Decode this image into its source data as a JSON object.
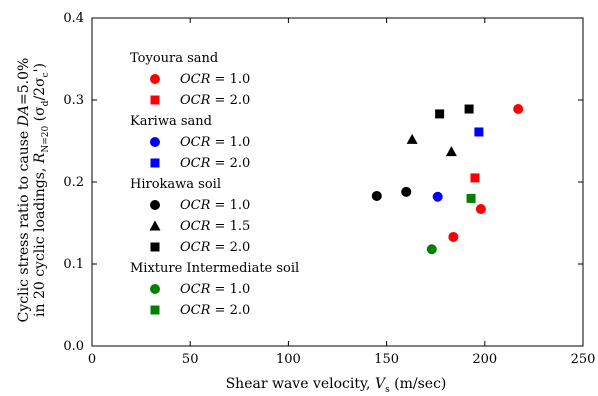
{
  "chart_data": {
    "type": "scatter",
    "xlabel_main": "Shear wave velocity, ",
    "xlabel_var": "V",
    "xlabel_sub": "s",
    "xlabel_unit": " (m/sec)",
    "ylabel_line1_main": "Cyclic stress ratio to cause ",
    "ylabel_line1_var": "DA",
    "ylabel_line1_tail": "=5.0%",
    "ylabel_line2_main": "in 20 cyclic loadings, ",
    "ylabel_line2_var": "R",
    "ylabel_line2_sub": "N=20",
    "ylabel_line2_ratio": " (σ",
    "ylabel_line2_ratio_sub1": "d",
    "ylabel_line2_ratio_mid": "/2σ",
    "ylabel_line2_ratio_sub2": "c",
    "ylabel_line2_ratio_end": "')",
    "xlim": [
      0,
      250
    ],
    "ylim": [
      0,
      0.4
    ],
    "xticks": [
      "0",
      "50",
      "100",
      "150",
      "200",
      "250"
    ],
    "yticks": [
      "0.0",
      "0.1",
      "0.2",
      "0.3",
      "0.4"
    ],
    "legend_position": "left",
    "groups": [
      {
        "title": "Toyoura sand",
        "series": [
          {
            "name": "1.0",
            "color": "#ff0000",
            "marker": "circle",
            "points": [
              [
                184,
                0.133
              ],
              [
                198,
                0.167
              ],
              [
                217,
                0.289
              ]
            ]
          },
          {
            "name": "2.0",
            "color": "#ff0000",
            "marker": "square",
            "points": [
              [
                195,
                0.205
              ]
            ]
          }
        ]
      },
      {
        "title": "Kariwa sand",
        "series": [
          {
            "name": "1.0",
            "color": "#0000ff",
            "marker": "circle",
            "points": [
              [
                176,
                0.182
              ]
            ]
          },
          {
            "name": "2.0",
            "color": "#0000ff",
            "marker": "square",
            "points": [
              [
                197,
                0.261
              ]
            ]
          }
        ]
      },
      {
        "title": "Hirokawa soil",
        "series": [
          {
            "name": "1.0",
            "color": "#000000",
            "marker": "circle",
            "points": [
              [
                145,
                0.183
              ],
              [
                160,
                0.188
              ]
            ]
          },
          {
            "name": "1.5",
            "color": "#000000",
            "marker": "triangle",
            "points": [
              [
                163,
                0.252
              ],
              [
                183,
                0.237
              ]
            ]
          },
          {
            "name": "2.0",
            "color": "#000000",
            "marker": "square",
            "points": [
              [
                177,
                0.283
              ],
              [
                192,
                0.289
              ]
            ]
          }
        ]
      },
      {
        "title": "Mixture Intermediate soil",
        "series": [
          {
            "name": "1.0",
            "color": "#008000",
            "marker": "circle",
            "points": [
              [
                173,
                0.118
              ]
            ]
          },
          {
            "name": "2.0",
            "color": "#008000",
            "marker": "square",
            "points": [
              [
                193,
                0.18
              ]
            ]
          }
        ]
      }
    ],
    "legend_label_var": "OCR",
    "legend_label_eq": " = "
  }
}
